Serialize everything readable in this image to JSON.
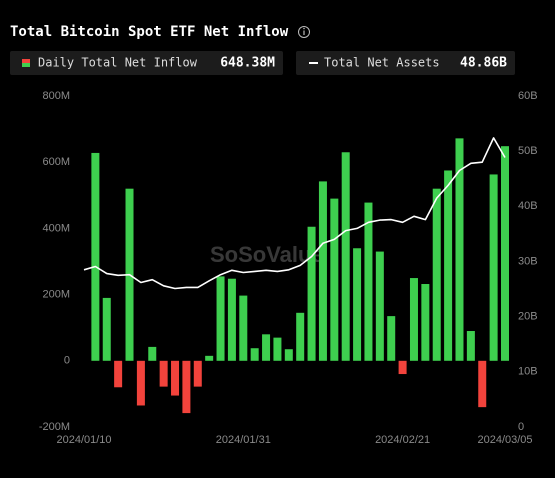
{
  "chart_data": {
    "type": "bar_line",
    "title": "Total Bitcoin Spot ETF Net Inflow",
    "watermark": "SoSoValue",
    "legend_values": [
      "648.38M",
      "48.86B"
    ],
    "categories": [
      "2024/01/10",
      null,
      null,
      null,
      null,
      null,
      null,
      null,
      null,
      null,
      null,
      null,
      null,
      null,
      "2024/01/31",
      null,
      null,
      null,
      null,
      null,
      null,
      null,
      null,
      null,
      null,
      null,
      null,
      null,
      "2024/02/21",
      null,
      null,
      null,
      null,
      null,
      null,
      null,
      null,
      "2024/03/05"
    ],
    "series": [
      {
        "name": "Daily Total Net Inflow",
        "color": "#3ecf4f",
        "negative_color": "#f2433c",
        "values": [
          null,
          628,
          190,
          -80,
          520,
          -135,
          42,
          -78,
          -105,
          -158,
          -78,
          15,
          255,
          248,
          197,
          38,
          80,
          70,
          35,
          145,
          405,
          542,
          490,
          630,
          340,
          478,
          330,
          135,
          -40,
          250,
          232,
          520,
          575,
          672,
          90,
          -140,
          563,
          648.38
        ]
      },
      {
        "name": "Total Net Assets",
        "color": "#ffffff",
        "axis": "y2",
        "values": [
          28.5,
          29.1,
          27.8,
          27.5,
          27.6,
          26.2,
          26.7,
          25.6,
          25.1,
          25.3,
          25.3,
          26.5,
          27.6,
          28.4,
          28.0,
          28.2,
          28.4,
          28.2,
          28.5,
          29.3,
          30.9,
          33.3,
          34.0,
          35.6,
          36.0,
          37.1,
          37.5,
          37.6,
          37.1,
          38.2,
          37.6,
          41.5,
          43.8,
          46.5,
          47.8,
          48.0,
          52.4,
          48.86
        ]
      }
    ],
    "ylim": [
      -200,
      800
    ],
    "yticks": [
      {
        "value": -200,
        "label": "-200M"
      },
      0,
      {
        "value": 200,
        "label": "200M"
      },
      {
        "value": 400,
        "label": "400M"
      },
      {
        "value": 600,
        "label": "600M"
      },
      {
        "value": 800,
        "label": "800M"
      }
    ],
    "y2lim": [
      0,
      60
    ],
    "y2ticks": [
      0,
      {
        "value": 10,
        "label": "10B"
      },
      {
        "value": 20,
        "label": "20B"
      },
      {
        "value": 30,
        "label": "30B"
      },
      {
        "value": 40,
        "label": "40B"
      },
      {
        "value": 50,
        "label": "50B"
      },
      {
        "value": 60,
        "label": "60B"
      }
    ],
    "grid": false
  }
}
